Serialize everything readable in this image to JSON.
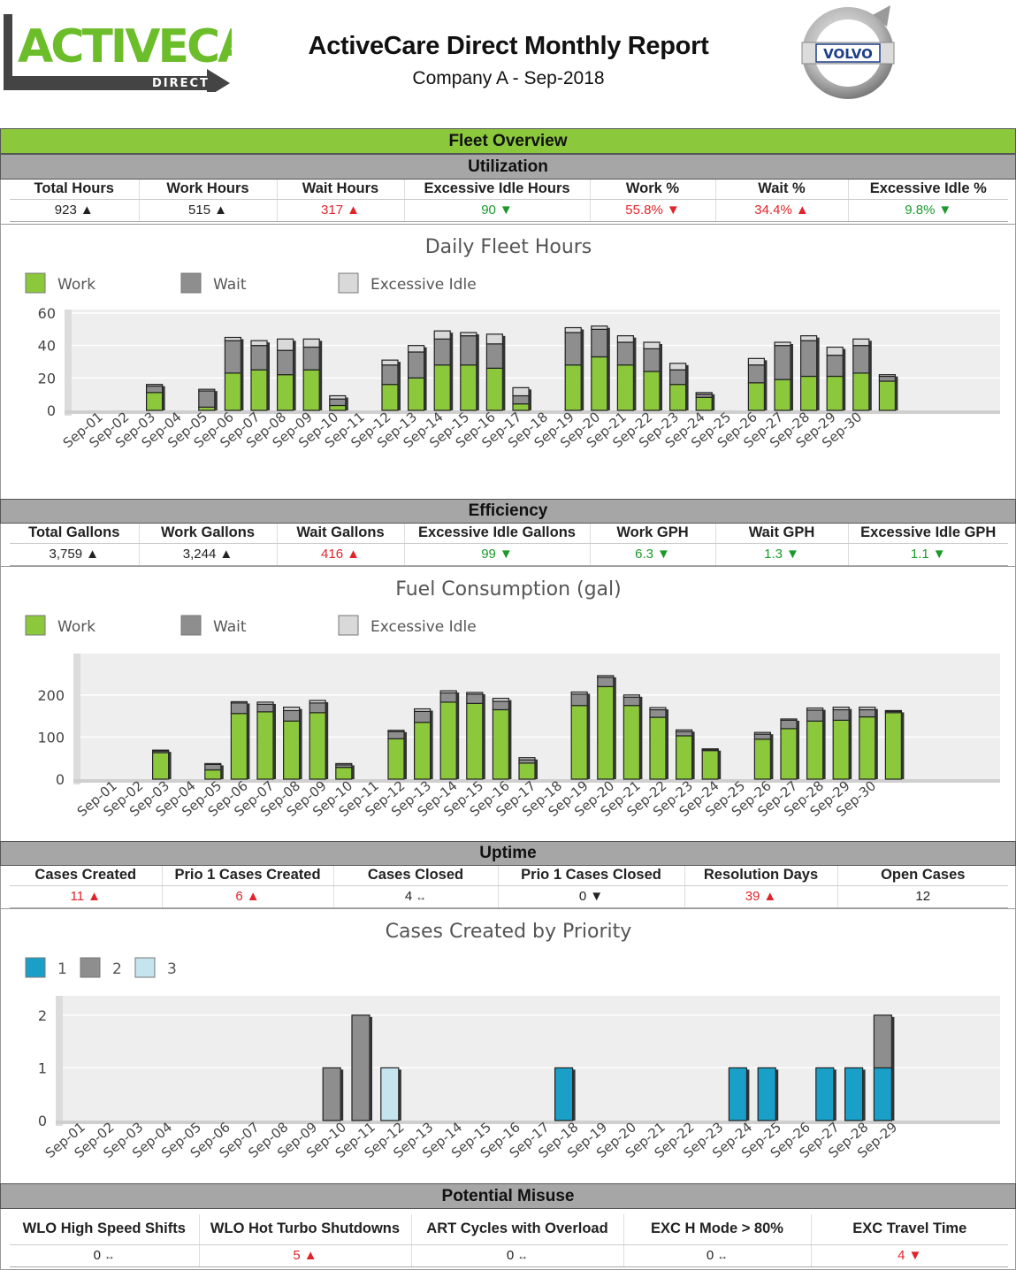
{
  "header": {
    "logo_main": "ACTIVECARE",
    "logo_sub": "DIRECT",
    "title": "ActiveCare Direct Monthly Report",
    "subtitle": "Company A - Sep-2018",
    "brand_badge": "VOLVO"
  },
  "sections": {
    "fleet_overview": "Fleet Overview",
    "utilization": "Utilization",
    "efficiency": "Efficiency",
    "uptime": "Uptime",
    "potential_misuse": "Potential Misuse"
  },
  "colors": {
    "green": "#8cc83c",
    "grey": "#8e8e8e",
    "light": "#d9d9d9",
    "blue": "#1aa0c8",
    "lightblue": "#c4e4ee",
    "red": "#e0242a",
    "good": "#1a9a2a"
  },
  "utilization": {
    "headers": [
      "Total Hours",
      "Work Hours",
      "Wait Hours",
      "Excessive Idle Hours",
      "Work %",
      "Wait %",
      "Excessive Idle %"
    ],
    "values": [
      {
        "v": "923",
        "arrow": "▲",
        "tone": "blk"
      },
      {
        "v": "515",
        "arrow": "▲",
        "tone": "blk"
      },
      {
        "v": "317",
        "arrow": "▲",
        "tone": "red"
      },
      {
        "v": "90",
        "arrow": "▼",
        "tone": "grn"
      },
      {
        "v": "55.8%",
        "arrow": "▼",
        "tone": "red"
      },
      {
        "v": "34.4%",
        "arrow": "▲",
        "tone": "red"
      },
      {
        "v": "9.8%",
        "arrow": "▼",
        "tone": "grn"
      }
    ]
  },
  "efficiency": {
    "headers": [
      "Total Gallons",
      "Work Gallons",
      "Wait Gallons",
      "Excessive Idle Gallons",
      "Work GPH",
      "Wait GPH",
      "Excessive Idle GPH"
    ],
    "values": [
      {
        "v": "3,759",
        "arrow": "▲",
        "tone": "blk"
      },
      {
        "v": "3,244",
        "arrow": "▲",
        "tone": "blk"
      },
      {
        "v": "416",
        "arrow": "▲",
        "tone": "red"
      },
      {
        "v": "99",
        "arrow": "▼",
        "tone": "grn"
      },
      {
        "v": "6.3",
        "arrow": "▼",
        "tone": "grn"
      },
      {
        "v": "1.3",
        "arrow": "▼",
        "tone": "grn"
      },
      {
        "v": "1.1",
        "arrow": "▼",
        "tone": "grn"
      }
    ]
  },
  "uptime": {
    "headers": [
      "Cases Created",
      "Prio 1 Cases Created",
      "Cases Closed",
      "Prio 1 Cases Closed",
      "Resolution Days",
      "Open Cases"
    ],
    "values": [
      {
        "v": "11",
        "arrow": "▲",
        "tone": "red"
      },
      {
        "v": "6",
        "arrow": "▲",
        "tone": "red"
      },
      {
        "v": "4",
        "arrow": "↔",
        "tone": "blk"
      },
      {
        "v": "0",
        "arrow": "▼",
        "tone": "blk"
      },
      {
        "v": "39",
        "arrow": "▲",
        "tone": "red"
      },
      {
        "v": "12",
        "arrow": "",
        "tone": "blk"
      }
    ]
  },
  "misuse": {
    "headers": [
      "WLO High Speed Shifts",
      "WLO Hot Turbo Shutdowns",
      "ART Cycles with Overload",
      "EXC H Mode > 80%",
      "EXC Travel Time"
    ],
    "values": [
      {
        "v": "0",
        "arrow": "↔",
        "tone": "blk"
      },
      {
        "v": "5",
        "arrow": "▲",
        "tone": "red"
      },
      {
        "v": "0",
        "arrow": "↔",
        "tone": "blk"
      },
      {
        "v": "0",
        "arrow": "↔",
        "tone": "blk"
      },
      {
        "v": "4",
        "arrow": "▼",
        "tone": "red"
      }
    ]
  },
  "chart_data": [
    {
      "type": "bar",
      "stacked": true,
      "title": "Daily Fleet Hours",
      "legend": [
        "Work",
        "Wait",
        "Excessive Idle"
      ],
      "ylim": [
        0,
        60
      ],
      "yticks": [
        0,
        20,
        40,
        60
      ],
      "categories": [
        "Sep-01",
        "Sep-02",
        "Sep-03",
        "Sep-04",
        "Sep-05",
        "Sep-06",
        "Sep-07",
        "Sep-08",
        "Sep-09",
        "Sep-10",
        "Sep-11",
        "Sep-12",
        "Sep-13",
        "Sep-14",
        "Sep-15",
        "Sep-16",
        "Sep-17",
        "Sep-18",
        "Sep-19",
        "Sep-20",
        "Sep-21",
        "Sep-22",
        "Sep-23",
        "Sep-24",
        "Sep-25",
        "Sep-26",
        "Sep-27",
        "Sep-28",
        "Sep-29",
        "Sep-30"
      ],
      "series": [
        {
          "name": "Work",
          "values": [
            null,
            11,
            null,
            2,
            23,
            25,
            22,
            25,
            3,
            null,
            16,
            20,
            28,
            28,
            26,
            4,
            null,
            28,
            33,
            28,
            24,
            16,
            8,
            null,
            17,
            19,
            21,
            21,
            23,
            18
          ]
        },
        {
          "name": "Wait",
          "values": [
            null,
            4,
            null,
            10,
            20,
            15,
            15,
            14,
            4,
            null,
            12,
            16,
            16,
            18,
            15,
            5,
            null,
            20,
            17,
            14,
            14,
            9,
            2,
            null,
            11,
            21,
            22,
            13,
            17,
            3
          ]
        },
        {
          "name": "Excessive Idle",
          "values": [
            null,
            1,
            null,
            1,
            2,
            3,
            7,
            5,
            2,
            null,
            3,
            4,
            5,
            2,
            6,
            5,
            null,
            3,
            2,
            4,
            4,
            4,
            1,
            null,
            4,
            2,
            3,
            5,
            4,
            1
          ]
        }
      ]
    },
    {
      "type": "bar",
      "stacked": true,
      "title": "Fuel Consumption (gal)",
      "legend": [
        "Work",
        "Wait",
        "Excessive Idle"
      ],
      "ylim": [
        0,
        290
      ],
      "yticks": [
        0,
        100,
        200
      ],
      "categories": [
        "Sep-01",
        "Sep-02",
        "Sep-03",
        "Sep-04",
        "Sep-05",
        "Sep-06",
        "Sep-07",
        "Sep-08",
        "Sep-09",
        "Sep-10",
        "Sep-11",
        "Sep-12",
        "Sep-13",
        "Sep-14",
        "Sep-15",
        "Sep-16",
        "Sep-17",
        "Sep-18",
        "Sep-19",
        "Sep-20",
        "Sep-21",
        "Sep-22",
        "Sep-23",
        "Sep-24",
        "Sep-25",
        "Sep-26",
        "Sep-27",
        "Sep-28",
        "Sep-29",
        "Sep-30"
      ],
      "series": [
        {
          "name": "Work",
          "values": [
            null,
            63,
            null,
            22,
            156,
            160,
            138,
            158,
            28,
            null,
            96,
            135,
            183,
            180,
            165,
            38,
            null,
            175,
            220,
            175,
            147,
            103,
            68,
            null,
            95,
            120,
            138,
            140,
            148,
            158
          ]
        },
        {
          "name": "Wait",
          "values": [
            null,
            4,
            null,
            13,
            25,
            18,
            25,
            23,
            6,
            null,
            17,
            26,
            22,
            22,
            20,
            8,
            null,
            27,
            22,
            20,
            18,
            10,
            3,
            null,
            12,
            20,
            26,
            25,
            17,
            3
          ]
        },
        {
          "name": "Excessive Idle",
          "values": [
            null,
            2,
            null,
            2,
            3,
            5,
            8,
            6,
            3,
            null,
            3,
            6,
            5,
            4,
            7,
            5,
            null,
            5,
            4,
            5,
            5,
            4,
            1,
            null,
            4,
            3,
            5,
            6,
            6,
            2
          ]
        }
      ]
    },
    {
      "type": "bar",
      "stacked": true,
      "title": "Cases Created by Priority",
      "legend": [
        "1",
        "2",
        "3"
      ],
      "ylim": [
        0,
        2.3
      ],
      "yticks": [
        0,
        1,
        2
      ],
      "categories": [
        "Sep-01",
        "Sep-02",
        "Sep-03",
        "Sep-04",
        "Sep-05",
        "Sep-06",
        "Sep-07",
        "Sep-08",
        "Sep-09",
        "Sep-10",
        "Sep-11",
        "Sep-12",
        "Sep-13",
        "Sep-14",
        "Sep-15",
        "Sep-16",
        "Sep-17",
        "Sep-18",
        "Sep-19",
        "Sep-20",
        "Sep-21",
        "Sep-22",
        "Sep-23",
        "Sep-24",
        "Sep-25",
        "Sep-26",
        "Sep-27",
        "Sep-28",
        "Sep-29"
      ],
      "series": [
        {
          "name": "1",
          "values": [
            0,
            0,
            0,
            0,
            0,
            0,
            0,
            0,
            0,
            0,
            0,
            0,
            0,
            0,
            0,
            0,
            0,
            1,
            0,
            0,
            0,
            0,
            0,
            1,
            1,
            0,
            1,
            1,
            1
          ]
        },
        {
          "name": "2",
          "values": [
            0,
            0,
            0,
            0,
            0,
            0,
            0,
            0,
            0,
            1,
            2,
            0,
            0,
            0,
            0,
            0,
            0,
            0,
            0,
            0,
            0,
            0,
            0,
            0,
            0,
            0,
            0,
            0,
            1
          ]
        },
        {
          "name": "3",
          "values": [
            0,
            0,
            0,
            0,
            0,
            0,
            0,
            0,
            0,
            0,
            0,
            1,
            0,
            0,
            0,
            0,
            0,
            0,
            0,
            0,
            0,
            0,
            0,
            0,
            0,
            0,
            0,
            0,
            0
          ]
        }
      ]
    }
  ]
}
